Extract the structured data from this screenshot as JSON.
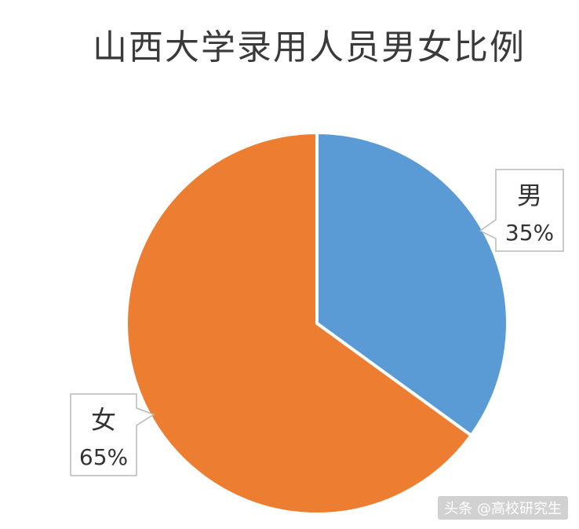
{
  "chart_data": {
    "type": "pie",
    "title": "山西大学录用人员男女比例",
    "slices": [
      {
        "label": "男",
        "value": 35,
        "value_label": "35%",
        "color": "#5b9bd5"
      },
      {
        "label": "女",
        "value": 65,
        "value_label": "65%",
        "color": "#ed7d31"
      }
    ],
    "start": "12 o'clock",
    "direction": "clockwise"
  },
  "watermark": "头条 @高校研究生"
}
